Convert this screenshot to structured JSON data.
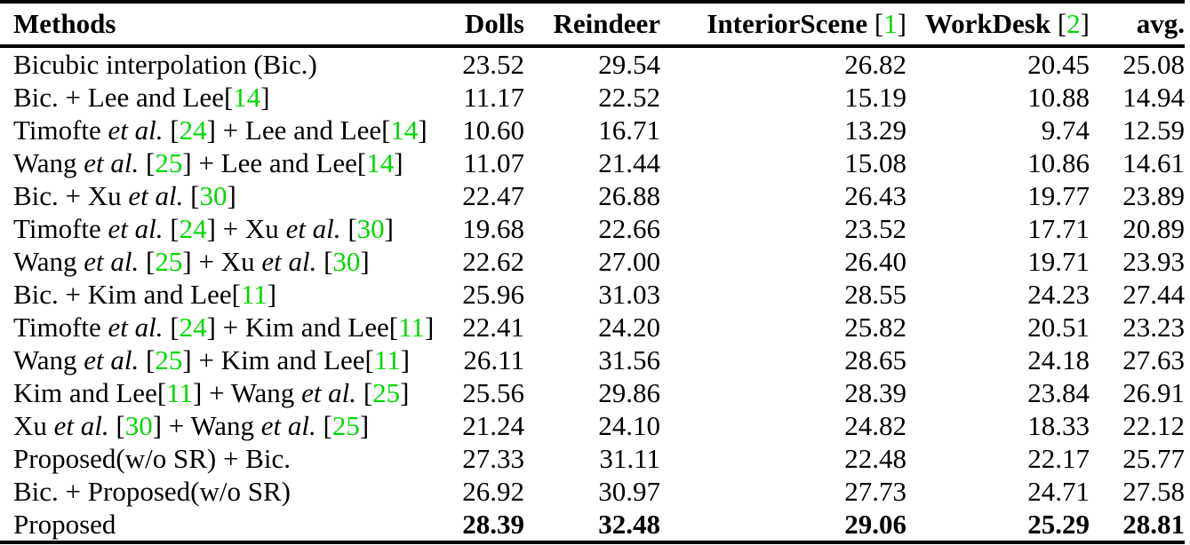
{
  "colors": {
    "citation": "#00d800",
    "text": "#000000",
    "rule": "#000000",
    "background": "#ffffff"
  },
  "table": {
    "columns": [
      {
        "key": "methods",
        "label": "Methods",
        "align": "left"
      },
      {
        "key": "dolls",
        "label": "Dolls",
        "align": "right"
      },
      {
        "key": "reindeer",
        "label": "Reindeer",
        "align": "right"
      },
      {
        "key": "interiorscene",
        "label": "InteriorScene",
        "cite": "1",
        "align": "right"
      },
      {
        "key": "workdesk",
        "label": "WorkDesk",
        "cite": "2",
        "align": "right"
      },
      {
        "key": "avg",
        "label": "avg.",
        "align": "right"
      }
    ],
    "rows": [
      {
        "method": [
          {
            "t": "Bicubic interpolation (Bic.)"
          }
        ],
        "values": [
          "23.52",
          "29.54",
          "26.82",
          "20.45",
          "25.08"
        ],
        "bold": false
      },
      {
        "method": [
          {
            "t": "Bic. + Lee and Lee["
          },
          {
            "c": "14"
          },
          {
            "t": "]"
          }
        ],
        "values": [
          "11.17",
          "22.52",
          "15.19",
          "10.88",
          "14.94"
        ],
        "bold": false
      },
      {
        "method": [
          {
            "t": "Timofte "
          },
          {
            "i": "et al."
          },
          {
            "t": " ["
          },
          {
            "c": "24"
          },
          {
            "t": "] + Lee and Lee["
          },
          {
            "c": "14"
          },
          {
            "t": "]"
          }
        ],
        "values": [
          "10.60",
          "16.71",
          "13.29",
          "9.74",
          "12.59"
        ],
        "bold": false
      },
      {
        "method": [
          {
            "t": "Wang "
          },
          {
            "i": "et al."
          },
          {
            "t": " ["
          },
          {
            "c": "25"
          },
          {
            "t": "] + Lee and Lee["
          },
          {
            "c": "14"
          },
          {
            "t": "]"
          }
        ],
        "values": [
          "11.07",
          "21.44",
          "15.08",
          "10.86",
          "14.61"
        ],
        "bold": false
      },
      {
        "method": [
          {
            "t": "Bic. + Xu "
          },
          {
            "i": "et al."
          },
          {
            "t": " ["
          },
          {
            "c": "30"
          },
          {
            "t": "]"
          }
        ],
        "values": [
          "22.47",
          "26.88",
          "26.43",
          "19.77",
          "23.89"
        ],
        "bold": false
      },
      {
        "method": [
          {
            "t": "Timofte "
          },
          {
            "i": "et al."
          },
          {
            "t": " ["
          },
          {
            "c": "24"
          },
          {
            "t": "] + Xu "
          },
          {
            "i": "et al."
          },
          {
            "t": " ["
          },
          {
            "c": "30"
          },
          {
            "t": "]"
          }
        ],
        "values": [
          "19.68",
          "22.66",
          "23.52",
          "17.71",
          "20.89"
        ],
        "bold": false
      },
      {
        "method": [
          {
            "t": "Wang "
          },
          {
            "i": "et al."
          },
          {
            "t": " ["
          },
          {
            "c": "25"
          },
          {
            "t": "] + Xu "
          },
          {
            "i": "et al."
          },
          {
            "t": " ["
          },
          {
            "c": "30"
          },
          {
            "t": "]"
          }
        ],
        "values": [
          "22.62",
          "27.00",
          "26.40",
          "19.71",
          "23.93"
        ],
        "bold": false
      },
      {
        "method": [
          {
            "t": "Bic. + Kim and Lee["
          },
          {
            "c": "11"
          },
          {
            "t": "]"
          }
        ],
        "values": [
          "25.96",
          "31.03",
          "28.55",
          "24.23",
          "27.44"
        ],
        "bold": false
      },
      {
        "method": [
          {
            "t": "Timofte "
          },
          {
            "i": "et al."
          },
          {
            "t": " ["
          },
          {
            "c": "24"
          },
          {
            "t": "] + Kim and Lee["
          },
          {
            "c": "11"
          },
          {
            "t": "]"
          }
        ],
        "values": [
          "22.41",
          "24.20",
          "25.82",
          "20.51",
          "23.23"
        ],
        "bold": false
      },
      {
        "method": [
          {
            "t": "Wang "
          },
          {
            "i": "et al."
          },
          {
            "t": " ["
          },
          {
            "c": "25"
          },
          {
            "t": "] + Kim and Lee["
          },
          {
            "c": "11"
          },
          {
            "t": "]"
          }
        ],
        "values": [
          "26.11",
          "31.56",
          "28.65",
          "24.18",
          "27.63"
        ],
        "bold": false
      },
      {
        "method": [
          {
            "t": "Kim and Lee["
          },
          {
            "c": "11"
          },
          {
            "t": "] + Wang "
          },
          {
            "i": "et al."
          },
          {
            "t": " ["
          },
          {
            "c": "25"
          },
          {
            "t": "]"
          }
        ],
        "values": [
          "25.56",
          "29.86",
          "28.39",
          "23.84",
          "26.91"
        ],
        "bold": false
      },
      {
        "method": [
          {
            "t": "Xu "
          },
          {
            "i": "et al."
          },
          {
            "t": " ["
          },
          {
            "c": "30"
          },
          {
            "t": "] + Wang "
          },
          {
            "i": "et al."
          },
          {
            "t": " ["
          },
          {
            "c": "25"
          },
          {
            "t": "]"
          }
        ],
        "values": [
          "21.24",
          "24.10",
          "24.82",
          "18.33",
          "22.12"
        ],
        "bold": false
      },
      {
        "method": [
          {
            "t": "Proposed(w/o SR) + Bic."
          }
        ],
        "values": [
          "27.33",
          "31.11",
          "22.48",
          "22.17",
          "25.77"
        ],
        "bold": false
      },
      {
        "method": [
          {
            "t": "Bic. + Proposed(w/o SR)"
          }
        ],
        "values": [
          "26.92",
          "30.97",
          "27.73",
          "24.71",
          "27.58"
        ],
        "bold": false
      },
      {
        "method": [
          {
            "t": "Proposed"
          }
        ],
        "values": [
          "28.39",
          "32.48",
          "29.06",
          "25.29",
          "28.81"
        ],
        "bold": true
      }
    ]
  }
}
